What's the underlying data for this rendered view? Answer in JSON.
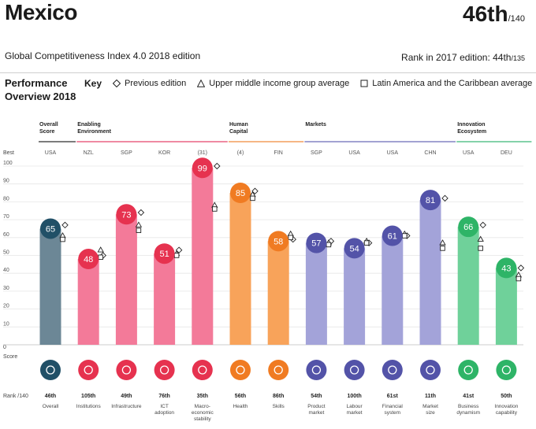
{
  "header": {
    "country": "Mexico",
    "rank": "46th",
    "rank_total": "/140",
    "edition": "Global Competitiveness Index 4.0 2018 edition",
    "prev_rank_label": "Rank in 2017 edition: 44th",
    "prev_rank_total": "/135"
  },
  "overview": {
    "title": "Performance Overview 2018",
    "key_label": "Key",
    "legend": [
      {
        "symbol": "diamond",
        "label": "Previous edition"
      },
      {
        "symbol": "triangle",
        "label": "Upper middle income group average"
      },
      {
        "symbol": "square",
        "label": "Latin America and the Caribbean average"
      }
    ]
  },
  "chart_data": {
    "type": "bar",
    "ylim": [
      0,
      100
    ],
    "yticks": [
      10,
      20,
      30,
      40,
      50,
      60,
      70,
      80,
      90,
      100
    ],
    "best_label": "Best",
    "zero_label": "0",
    "score_label": "Score",
    "rank_label": "Rank /140",
    "groups": [
      {
        "label": [
          "Overall",
          "Score"
        ],
        "color": "#2f2f2f",
        "pillars": [
          0
        ]
      },
      {
        "label": [
          "Enabling",
          "Environment"
        ],
        "color": "#e5436a",
        "pillars": [
          1,
          2,
          3,
          4
        ]
      },
      {
        "label": [
          "Human",
          "Capital"
        ],
        "color": "#f08a3c",
        "pillars": [
          5,
          6
        ]
      },
      {
        "label": [
          "Markets"
        ],
        "color": "#6a6ab8",
        "pillars": [
          7,
          8,
          9,
          10
        ]
      },
      {
        "label": [
          "Innovation",
          "Ecosystem"
        ],
        "color": "#3cb878",
        "pillars": [
          11,
          12
        ]
      }
    ],
    "pillars": [
      {
        "name": [
          "Overall"
        ],
        "best": "USA",
        "value": 65,
        "previous": 67,
        "umi": 61,
        "lac": 59,
        "rank": "46th",
        "bar": "#6c8796",
        "circle": "#215067",
        "icon": "medal-icon"
      },
      {
        "name": [
          "Institutions"
        ],
        "best": "NZL",
        "value": 48,
        "previous": 50,
        "umi": 53,
        "lac": 49,
        "rank": "105th",
        "bar": "#f37a99",
        "circle": "#e6324f",
        "icon": "institutions-icon"
      },
      {
        "name": [
          "Infrastructure"
        ],
        "best": "SGP",
        "value": 73,
        "previous": 74,
        "umi": 67,
        "lac": 64,
        "rank": "49th",
        "bar": "#f37a99",
        "circle": "#e6324f",
        "icon": "infrastructure-icon"
      },
      {
        "name": [
          "ICT",
          "adoption"
        ],
        "best": "KOR",
        "value": 51,
        "previous": 53,
        "umi": 51,
        "lac": 50,
        "rank": "76th",
        "bar": "#f37a99",
        "circle": "#e6324f",
        "icon": "ict-icon"
      },
      {
        "name": [
          "Macro-",
          "economic",
          "stability"
        ],
        "best": "(31)",
        "value": 99,
        "previous": 100,
        "umi": 78,
        "lac": 76,
        "rank": "35th",
        "bar": "#f37a99",
        "circle": "#e6324f",
        "icon": "macro-icon"
      },
      {
        "name": [
          "Health"
        ],
        "best": "(4)",
        "value": 85,
        "previous": 86,
        "umi": 84,
        "lac": 82,
        "rank": "56th",
        "bar": "#f8a35a",
        "circle": "#f07b22",
        "icon": "health-icon"
      },
      {
        "name": [
          "Skills"
        ],
        "best": "FIN",
        "value": 58,
        "previous": 59,
        "umi": 62,
        "lac": 60,
        "rank": "86th",
        "bar": "#f8a35a",
        "circle": "#f07b22",
        "icon": "skills-icon"
      },
      {
        "name": [
          "Product",
          "market"
        ],
        "best": "SGP",
        "value": 57,
        "previous": 58,
        "umi": 57,
        "lac": 56,
        "rank": "54th",
        "bar": "#a3a3d9",
        "circle": "#5353a8",
        "icon": "product-market-icon"
      },
      {
        "name": [
          "Labour",
          "market"
        ],
        "best": "USA",
        "value": 54,
        "previous": 57,
        "umi": 58,
        "lac": 57,
        "rank": "100th",
        "bar": "#a3a3d9",
        "circle": "#5353a8",
        "icon": "labour-market-icon"
      },
      {
        "name": [
          "Financial",
          "system"
        ],
        "best": "USA",
        "value": 61,
        "previous": 61,
        "umi": 62,
        "lac": 61,
        "rank": "61st",
        "bar": "#a3a3d9",
        "circle": "#5353a8",
        "icon": "financial-system-icon"
      },
      {
        "name": [
          "Market",
          "size"
        ],
        "best": "CHN",
        "value": 81,
        "previous": 82,
        "umi": 57,
        "lac": 54,
        "rank": "11th",
        "bar": "#a3a3d9",
        "circle": "#5353a8",
        "icon": "market-size-icon"
      },
      {
        "name": [
          "Business",
          "dynamism"
        ],
        "best": "USA",
        "value": 66,
        "previous": 67,
        "umi": 59,
        "lac": 54,
        "rank": "41st",
        "bar": "#6fd19a",
        "circle": "#2eb467",
        "icon": "business-dynamism-icon"
      },
      {
        "name": [
          "Innovation",
          "capability"
        ],
        "best": "DEU",
        "value": 43,
        "previous": 43,
        "umi": 39,
        "lac": 37,
        "rank": "50th",
        "bar": "#6fd19a",
        "circle": "#2eb467",
        "icon": "innovation-icon"
      }
    ]
  }
}
